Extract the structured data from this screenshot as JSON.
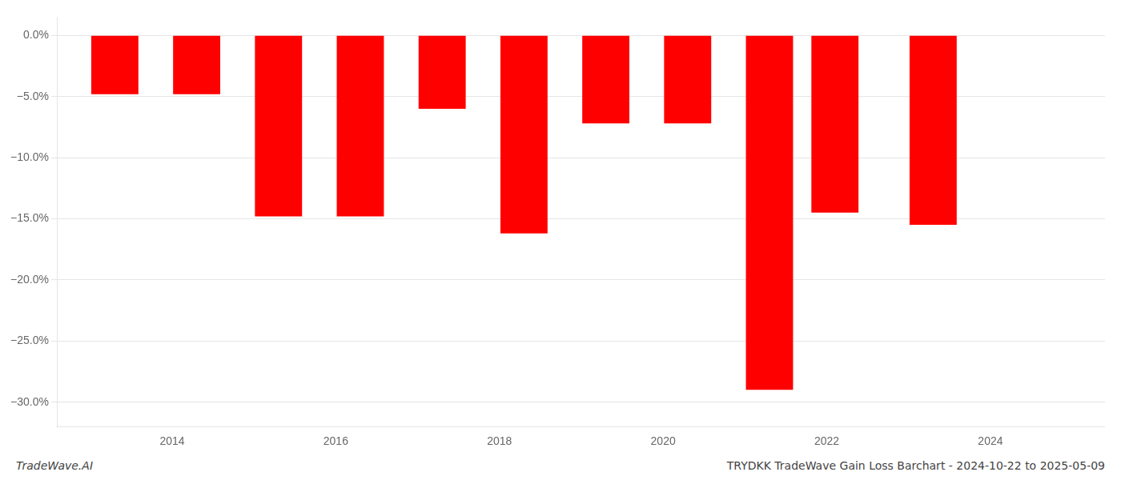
{
  "chart_data": {
    "type": "bar",
    "title": "TRYDKK TradeWave Gain Loss Barchart - 2024-10-22 to 2025-05-09",
    "annotations": [
      "TradeWave.AI"
    ],
    "x": [
      2013.3,
      2014.3,
      2015.3,
      2016.3,
      2017.3,
      2018.3,
      2019.3,
      2020.3,
      2021.3,
      2022.1,
      2023.3
    ],
    "values": [
      -4.8,
      -4.8,
      -14.8,
      -14.8,
      -6.0,
      -16.2,
      -7.2,
      -7.2,
      -29.0,
      -14.5,
      -15.5
    ],
    "colors": [
      "#ff0000",
      "#ff0000",
      "#ff0000",
      "#ff0000",
      "#ff0000",
      "#ff0000",
      "#ff0000",
      "#ff0000",
      "#ff0000",
      "#ff0000",
      "#ff0000"
    ],
    "xlim": [
      2012.6,
      2025.4
    ],
    "xticks": [
      2014,
      2016,
      2018,
      2020,
      2022,
      2024
    ],
    "ylim": [
      -32,
      1.5
    ],
    "yticks": [
      {
        "value": 0.0,
        "label": "0.0%"
      },
      {
        "value": -5.0,
        "label": "−5.0%"
      },
      {
        "value": -10.0,
        "label": "−10.0%"
      },
      {
        "value": -15.0,
        "label": "−15.0%"
      },
      {
        "value": -20.0,
        "label": "−20.0%"
      },
      {
        "value": -25.0,
        "label": "−25.0%"
      },
      {
        "value": -30.0,
        "label": "−30.0%"
      }
    ],
    "grid": "y"
  }
}
